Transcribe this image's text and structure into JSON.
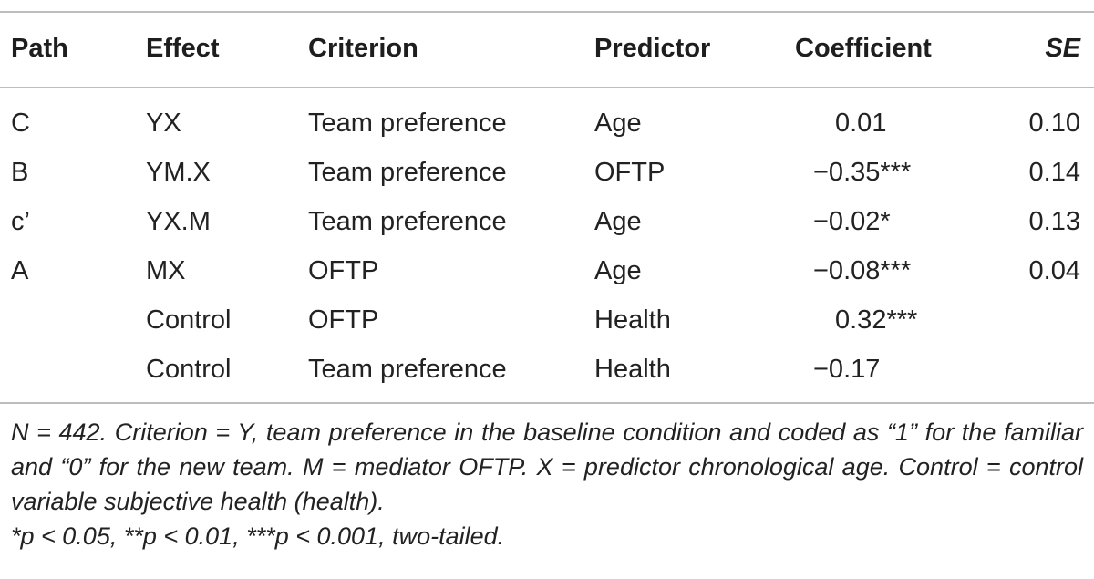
{
  "table": {
    "headers": {
      "path": "Path",
      "effect": "Effect",
      "criterion": "Criterion",
      "predictor": "Predictor",
      "coefficient": "Coefficient",
      "se": "SE"
    },
    "rows": [
      {
        "path": "C",
        "effect": "YX",
        "criterion": "Team preference",
        "predictor": "Age",
        "coefficient": "0.01",
        "se": "0.10"
      },
      {
        "path": "B",
        "effect": "YM.X",
        "criterion": "Team preference",
        "predictor": "OFTP",
        "coefficient": "−0.35***",
        "se": "0.14"
      },
      {
        "path": "c’",
        "effect": "YX.M",
        "criterion": "Team preference",
        "predictor": "Age",
        "coefficient": "−0.02*",
        "se": "0.13"
      },
      {
        "path": "A",
        "effect": "MX",
        "criterion": "OFTP",
        "predictor": "Age",
        "coefficient": "−0.08***",
        "se": "0.04"
      },
      {
        "path": "",
        "effect": "Control",
        "criterion": "OFTP",
        "predictor": "Health",
        "coefficient": "0.32***",
        "se": ""
      },
      {
        "path": "",
        "effect": "Control",
        "criterion": "Team preference",
        "predictor": "Health",
        "coefficient": "−0.17",
        "se": ""
      }
    ]
  },
  "notes": {
    "main": "N = 442. Criterion = Y, team preference in the baseline condition and coded as “1” for the familiar and “0” for the new team. M = mediator OFTP. X = predictor chronological age. Control = control variable subjective health (health).",
    "significance": "*p < 0.05, **p < 0.01, ***p < 0.001, two-tailed."
  }
}
